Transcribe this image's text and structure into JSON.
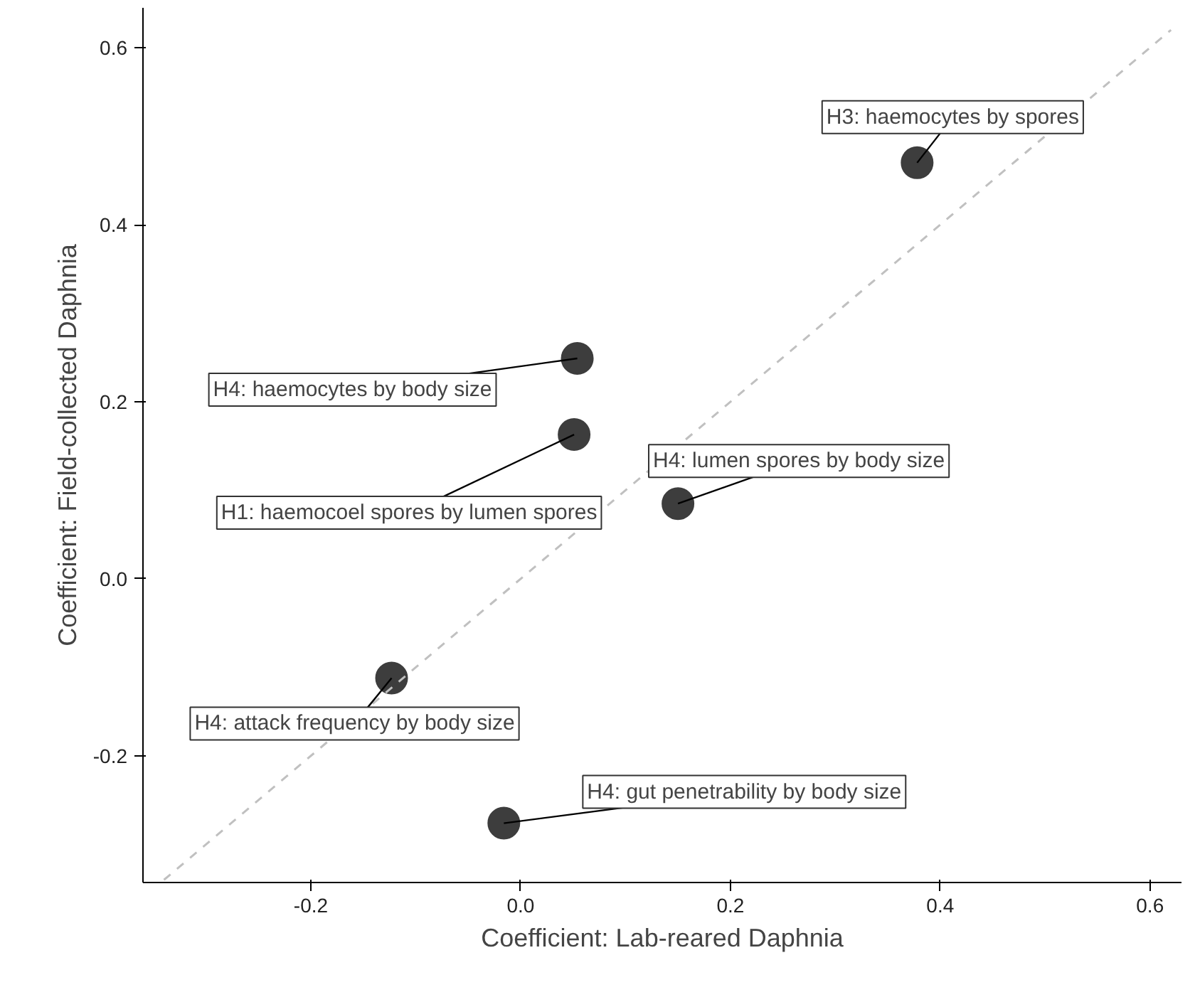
{
  "chart_data": {
    "type": "scatter",
    "xlabel": "Coefficient: Lab-reared Daphnia",
    "ylabel": "Coefficient: Field-collected Daphnia",
    "x": [
      0.378,
      0.054,
      0.051,
      0.15,
      -0.123,
      -0.016
    ],
    "series": [
      {
        "color": "#3d3d3d",
        "marker": "circle",
        "values": [
          0.47,
          0.249,
          0.163,
          0.085,
          -0.112,
          -0.276
        ]
      },
      {
        "type": "line",
        "color": "#c0c0c0",
        "line_style": "dashed",
        "x": [
          -0.34,
          0.62
        ],
        "values": [
          -0.34,
          0.62
        ]
      }
    ],
    "annotations": [
      {
        "text": "H3: haemocytes by spores",
        "x": 0.378,
        "y": 0.47
      },
      {
        "text": "H4: haemocytes by body size",
        "x": 0.054,
        "y": 0.249
      },
      {
        "text": "H1: haemocoel spores by lumen spores",
        "x": 0.051,
        "y": 0.163
      },
      {
        "text": "H4: lumen spores by body size",
        "x": 0.15,
        "y": 0.085
      },
      {
        "text": "H4: attack frequency by body size",
        "x": -0.123,
        "y": -0.112
      },
      {
        "text": "H4: gut penetrability by body size",
        "x": -0.016,
        "y": -0.276
      }
    ],
    "xlim": [
      -0.36,
      0.63
    ],
    "ylim": [
      -0.343,
      0.645
    ],
    "xticks": [
      -0.2,
      {
        "value": 0,
        "label": "0.0"
      },
      0.2,
      0.4,
      0.6
    ],
    "yticks": [
      -0.2,
      {
        "value": 0,
        "label": "0.0"
      },
      0.2,
      0.4,
      0.6
    ],
    "grid": false
  }
}
